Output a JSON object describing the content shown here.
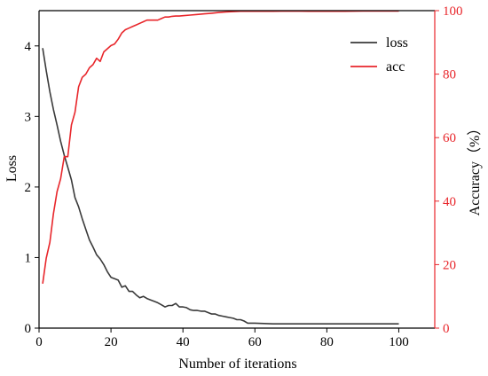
{
  "chart_data": {
    "type": "line",
    "title": "",
    "xlabel": "Number of iterations",
    "ylabel": "Loss",
    "ylabel_right": "Accuracy（%）",
    "xlim": [
      0,
      110
    ],
    "ylim": [
      0,
      4.5
    ],
    "ylim_right": [
      0,
      100
    ],
    "x_ticks": [
      0,
      20,
      40,
      60,
      80,
      100
    ],
    "y_ticks": [
      0,
      1,
      2,
      3,
      4
    ],
    "y_ticks_right": [
      0,
      20,
      40,
      60,
      80,
      100
    ],
    "grid": false,
    "legend_position": "top-right",
    "colors": {
      "loss": "#3a3a3a",
      "acc": "#e8262b"
    },
    "series": [
      {
        "name": "loss",
        "axis": "left",
        "x": [
          1,
          2,
          3,
          4,
          5,
          6,
          7,
          8,
          9,
          10,
          11,
          12,
          13,
          14,
          15,
          16,
          17,
          18,
          19,
          20,
          21,
          22,
          23,
          24,
          25,
          26,
          27,
          28,
          29,
          30,
          31,
          32,
          33,
          34,
          35,
          36,
          37,
          38,
          39,
          40,
          41,
          42,
          43,
          44,
          45,
          46,
          47,
          48,
          49,
          50,
          51,
          52,
          53,
          54,
          55,
          56,
          57,
          58,
          60,
          65,
          70,
          75,
          80,
          85,
          90,
          95,
          100
        ],
        "values": [
          3.97,
          3.65,
          3.35,
          3.1,
          2.88,
          2.65,
          2.45,
          2.28,
          2.1,
          1.85,
          1.72,
          1.55,
          1.4,
          1.25,
          1.15,
          1.04,
          0.98,
          0.9,
          0.8,
          0.72,
          0.7,
          0.68,
          0.58,
          0.6,
          0.52,
          0.52,
          0.47,
          0.43,
          0.45,
          0.42,
          0.4,
          0.38,
          0.36,
          0.33,
          0.3,
          0.32,
          0.32,
          0.35,
          0.3,
          0.3,
          0.29,
          0.26,
          0.25,
          0.25,
          0.24,
          0.24,
          0.22,
          0.2,
          0.2,
          0.18,
          0.17,
          0.16,
          0.15,
          0.14,
          0.12,
          0.12,
          0.1,
          0.07,
          0.07,
          0.06,
          0.06,
          0.06,
          0.06,
          0.06,
          0.06,
          0.06,
          0.06
        ]
      },
      {
        "name": "acc",
        "axis": "right",
        "x": [
          1,
          2,
          3,
          4,
          5,
          6,
          7,
          8,
          9,
          10,
          11,
          12,
          13,
          14,
          15,
          16,
          17,
          18,
          19,
          20,
          21,
          22,
          23,
          24,
          25,
          26,
          27,
          28,
          29,
          30,
          31,
          32,
          33,
          34,
          35,
          36,
          37,
          38,
          39,
          40,
          42,
          44,
          46,
          48,
          50,
          52,
          54,
          56,
          58,
          60,
          65,
          70,
          75,
          80,
          85,
          90,
          95,
          100
        ],
        "values": [
          14,
          22,
          27,
          36,
          43,
          47,
          54,
          54,
          64,
          68,
          76,
          79,
          80,
          82,
          83,
          85,
          84,
          87,
          88,
          89,
          89.5,
          91,
          93,
          94,
          94.5,
          95,
          95.5,
          96,
          96.5,
          97,
          97,
          97,
          97,
          97.5,
          98,
          98,
          98.2,
          98.3,
          98.3,
          98.4,
          98.6,
          98.8,
          99,
          99.2,
          99.4,
          99.6,
          99.7,
          99.8,
          99.8,
          99.8,
          99.8,
          99.9,
          99.8,
          99.8,
          99.8,
          99.9,
          99.9,
          99.9
        ]
      }
    ]
  }
}
